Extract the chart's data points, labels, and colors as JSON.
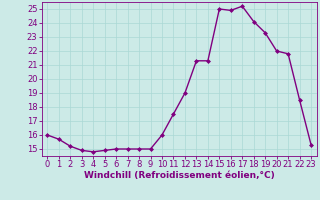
{
  "x": [
    0,
    1,
    2,
    3,
    4,
    5,
    6,
    7,
    8,
    9,
    10,
    11,
    12,
    13,
    14,
    15,
    16,
    17,
    18,
    19,
    20,
    21,
    22,
    23
  ],
  "y": [
    16.0,
    15.7,
    15.2,
    14.9,
    14.8,
    14.9,
    15.0,
    15.0,
    15.0,
    15.0,
    16.0,
    17.5,
    19.0,
    21.3,
    21.3,
    25.0,
    24.9,
    25.2,
    24.1,
    23.3,
    22.0,
    21.8,
    18.5,
    15.3
  ],
  "line_color": "#800080",
  "marker": "D",
  "marker_size": 2.0,
  "bg_color": "#cceae7",
  "grid_color": "#aad8d5",
  "xlabel": "Windchill (Refroidissement éolien,°C)",
  "ylabel": "",
  "ylim": [
    14.5,
    25.5
  ],
  "xlim": [
    -0.5,
    23.5
  ],
  "yticks": [
    15,
    16,
    17,
    18,
    19,
    20,
    21,
    22,
    23,
    24,
    25
  ],
  "xticks": [
    0,
    1,
    2,
    3,
    4,
    5,
    6,
    7,
    8,
    9,
    10,
    11,
    12,
    13,
    14,
    15,
    16,
    17,
    18,
    19,
    20,
    21,
    22,
    23
  ],
  "tick_color": "#800080",
  "axis_color": "#800080",
  "xlabel_fontsize": 6.5,
  "tick_fontsize": 6.0,
  "line_width": 1.0
}
